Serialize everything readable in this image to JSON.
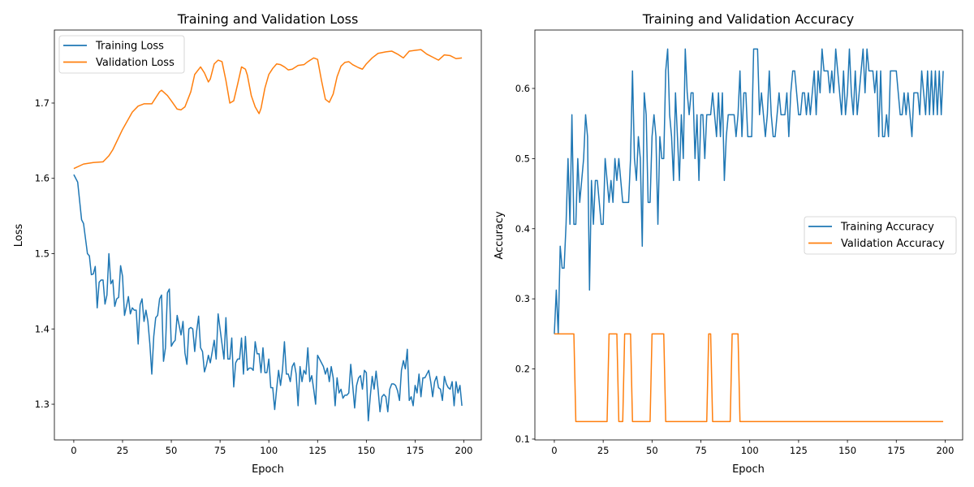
{
  "chart_data": [
    {
      "type": "line",
      "title": "Training and Validation Loss",
      "xlabel": "Epoch",
      "ylabel": "Loss",
      "xlim": [
        -9.95,
        208.95
      ],
      "ylim": [
        1.2526,
        1.797
      ],
      "xticks": [
        0,
        25,
        50,
        75,
        100,
        125,
        150,
        175,
        200
      ],
      "yticks": [
        1.3,
        1.4,
        1.5,
        1.6,
        1.7
      ],
      "ytick_labels": [
        "1.3",
        "1.4",
        "1.5",
        "1.6",
        "1.7"
      ],
      "grid": false,
      "legend_placement": "upper-left",
      "series": [
        {
          "name": "Training Loss",
          "color": "#1f77b4",
          "values": [
            1.605,
            1.6,
            1.595,
            1.57,
            1.545,
            1.54,
            1.52,
            1.5,
            1.497,
            1.472,
            1.473,
            1.483,
            1.428,
            1.462,
            1.465,
            1.465,
            1.433,
            1.445,
            1.5,
            1.46,
            1.465,
            1.43,
            1.44,
            1.442,
            1.484,
            1.47,
            1.418,
            1.43,
            1.443,
            1.42,
            1.428,
            1.425,
            1.425,
            1.38,
            1.432,
            1.44,
            1.41,
            1.425,
            1.41,
            1.38,
            1.34,
            1.39,
            1.415,
            1.418,
            1.44,
            1.445,
            1.357,
            1.375,
            1.448,
            1.453,
            1.377,
            1.382,
            1.385,
            1.418,
            1.405,
            1.392,
            1.41,
            1.368,
            1.353,
            1.4,
            1.402,
            1.4,
            1.37,
            1.397,
            1.417,
            1.375,
            1.37,
            1.343,
            1.352,
            1.365,
            1.355,
            1.37,
            1.385,
            1.36,
            1.42,
            1.4,
            1.38,
            1.36,
            1.415,
            1.36,
            1.36,
            1.388,
            1.323,
            1.355,
            1.36,
            1.36,
            1.388,
            1.34,
            1.39,
            1.345,
            1.348,
            1.348,
            1.345,
            1.383,
            1.367,
            1.367,
            1.342,
            1.375,
            1.342,
            1.342,
            1.36,
            1.322,
            1.322,
            1.293,
            1.32,
            1.345,
            1.325,
            1.345,
            1.383,
            1.34,
            1.34,
            1.33,
            1.35,
            1.355,
            1.34,
            1.298,
            1.35,
            1.33,
            1.345,
            1.34,
            1.375,
            1.33,
            1.338,
            1.32,
            1.3,
            1.365,
            1.36,
            1.355,
            1.35,
            1.34,
            1.348,
            1.33,
            1.35,
            1.335,
            1.298,
            1.335,
            1.315,
            1.32,
            1.308,
            1.312,
            1.312,
            1.315,
            1.353,
            1.325,
            1.295,
            1.325,
            1.335,
            1.338,
            1.32,
            1.345,
            1.342,
            1.278,
            1.31,
            1.337,
            1.32,
            1.344,
            1.32,
            1.29,
            1.31,
            1.313,
            1.31,
            1.29,
            1.32,
            1.327,
            1.327,
            1.325,
            1.318,
            1.305,
            1.345,
            1.358,
            1.347,
            1.373,
            1.305,
            1.31,
            1.298,
            1.325,
            1.315,
            1.34,
            1.31,
            1.335,
            1.335,
            1.34,
            1.345,
            1.33,
            1.31,
            1.33,
            1.337,
            1.322,
            1.32,
            1.305,
            1.337,
            1.327,
            1.322,
            1.32,
            1.33,
            1.298,
            1.33,
            1.315,
            1.325,
            1.298
          ]
        },
        {
          "name": "Validation Loss",
          "color": "#ff7f0e",
          "x": [
            0,
            5,
            10,
            15,
            18,
            20,
            25,
            30,
            33,
            36,
            40,
            44,
            45,
            48,
            50,
            53,
            55,
            57,
            60,
            62,
            65,
            67,
            69,
            70,
            72,
            74,
            76,
            78,
            80,
            82,
            84,
            86,
            88,
            89,
            91,
            93,
            95,
            96,
            98,
            100,
            102,
            104,
            106,
            108,
            110,
            112,
            115,
            118,
            120,
            123,
            125,
            127,
            129,
            131,
            133,
            135,
            137,
            139,
            141,
            143,
            146,
            148,
            150,
            153,
            156,
            160,
            163,
            166,
            169,
            172,
            175,
            178,
            181,
            184,
            187,
            190,
            193,
            196,
            199
          ],
          "values": [
            1.613,
            1.619,
            1.621,
            1.622,
            1.63,
            1.638,
            1.665,
            1.688,
            1.696,
            1.699,
            1.699,
            1.715,
            1.717,
            1.71,
            1.703,
            1.692,
            1.691,
            1.695,
            1.715,
            1.738,
            1.748,
            1.74,
            1.728,
            1.732,
            1.752,
            1.757,
            1.755,
            1.73,
            1.7,
            1.703,
            1.725,
            1.748,
            1.745,
            1.737,
            1.71,
            1.695,
            1.686,
            1.693,
            1.72,
            1.738,
            1.746,
            1.752,
            1.751,
            1.748,
            1.744,
            1.745,
            1.75,
            1.751,
            1.755,
            1.76,
            1.758,
            1.73,
            1.705,
            1.701,
            1.712,
            1.735,
            1.749,
            1.754,
            1.755,
            1.751,
            1.747,
            1.745,
            1.752,
            1.76,
            1.766,
            1.768,
            1.769,
            1.765,
            1.76,
            1.769,
            1.77,
            1.771,
            1.765,
            1.761,
            1.757,
            1.764,
            1.763,
            1.759,
            1.76
          ]
        }
      ]
    },
    {
      "type": "line",
      "title": "Training and Validation Accuracy",
      "xlabel": "Epoch",
      "ylabel": "Accuracy",
      "xlim": [
        -9.95,
        208.95
      ],
      "ylim": [
        0.0988,
        0.6833
      ],
      "xticks": [
        0,
        25,
        50,
        75,
        100,
        125,
        150,
        175,
        200
      ],
      "yticks": [
        0.1,
        0.2,
        0.3,
        0.4,
        0.5,
        0.6
      ],
      "ytick_labels": [
        "0.1",
        "0.2",
        "0.3",
        "0.4",
        "0.5",
        "0.6"
      ],
      "grid": false,
      "legend_placement": "center-right",
      "series": [
        {
          "name": "Training Accuracy",
          "color": "#1f77b4",
          "values": [
            0.25,
            0.3125,
            0.25,
            0.375,
            0.34375,
            0.34375,
            0.40625,
            0.5,
            0.40625,
            0.5625,
            0.40625,
            0.40625,
            0.5,
            0.4375,
            0.46875,
            0.5,
            0.5625,
            0.53125,
            0.3125,
            0.46875,
            0.40625,
            0.46875,
            0.46875,
            0.4375,
            0.40625,
            0.40625,
            0.5,
            0.46875,
            0.4375,
            0.46875,
            0.4375,
            0.5,
            0.46875,
            0.5,
            0.46875,
            0.4375,
            0.4375,
            0.4375,
            0.4375,
            0.5,
            0.625,
            0.5,
            0.46875,
            0.53125,
            0.5,
            0.375,
            0.59375,
            0.5625,
            0.4375,
            0.4375,
            0.53125,
            0.5625,
            0.53125,
            0.40625,
            0.53125,
            0.5,
            0.5,
            0.625,
            0.65625,
            0.5625,
            0.53125,
            0.46875,
            0.59375,
            0.53125,
            0.46875,
            0.5625,
            0.5,
            0.65625,
            0.59375,
            0.5625,
            0.59375,
            0.59375,
            0.5,
            0.5625,
            0.46875,
            0.5625,
            0.5625,
            0.5,
            0.5625,
            0.5625,
            0.5625,
            0.59375,
            0.5625,
            0.53125,
            0.59375,
            0.53125,
            0.59375,
            0.46875,
            0.53125,
            0.5625,
            0.5625,
            0.5625,
            0.5625,
            0.53125,
            0.5625,
            0.625,
            0.53125,
            0.59375,
            0.59375,
            0.53125,
            0.53125,
            0.53125,
            0.65625,
            0.65625,
            0.65625,
            0.5625,
            0.59375,
            0.5625,
            0.53125,
            0.5625,
            0.625,
            0.5625,
            0.53125,
            0.53125,
            0.5625,
            0.59375,
            0.5625,
            0.5625,
            0.5625,
            0.59375,
            0.53125,
            0.59375,
            0.625,
            0.625,
            0.59375,
            0.5625,
            0.5625,
            0.59375,
            0.59375,
            0.5625,
            0.59375,
            0.5625,
            0.59375,
            0.625,
            0.5625,
            0.625,
            0.59375,
            0.65625,
            0.625,
            0.625,
            0.625,
            0.59375,
            0.625,
            0.59375,
            0.65625,
            0.625,
            0.59375,
            0.5625,
            0.625,
            0.5625,
            0.59375,
            0.65625,
            0.59375,
            0.5625,
            0.625,
            0.5625,
            0.59375,
            0.625,
            0.65625,
            0.59375,
            0.65625,
            0.625,
            0.625,
            0.625,
            0.59375,
            0.625,
            0.53125,
            0.625,
            0.53125,
            0.53125,
            0.5625,
            0.53125,
            0.625,
            0.625,
            0.625,
            0.625,
            0.59375,
            0.5625,
            0.5625,
            0.59375,
            0.5625,
            0.59375,
            0.5625,
            0.53125,
            0.59375,
            0.59375,
            0.59375,
            0.5625,
            0.625,
            0.59375,
            0.5625,
            0.625,
            0.5625,
            0.625,
            0.5625,
            0.625,
            0.5625,
            0.625,
            0.5625,
            0.625
          ]
        },
        {
          "name": "Validation Accuracy",
          "color": "#ff7f0e",
          "x": [
            0,
            10,
            11,
            27,
            28,
            32,
            33,
            35,
            36,
            39,
            40,
            49,
            50,
            56,
            57,
            78,
            79,
            80,
            81,
            90,
            91,
            94,
            95,
            199
          ],
          "values": [
            0.25,
            0.25,
            0.125,
            0.125,
            0.25,
            0.25,
            0.125,
            0.125,
            0.25,
            0.25,
            0.125,
            0.125,
            0.25,
            0.25,
            0.125,
            0.125,
            0.25,
            0.25,
            0.125,
            0.125,
            0.25,
            0.25,
            0.125,
            0.125
          ]
        }
      ]
    }
  ]
}
